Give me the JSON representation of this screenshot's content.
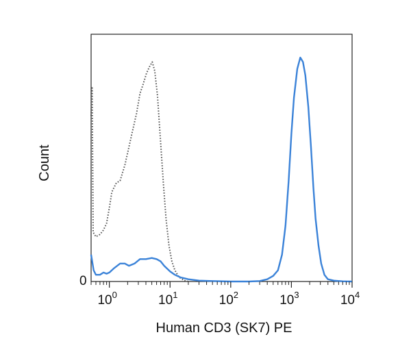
{
  "chart_data": {
    "type": "line",
    "title": "",
    "xlabel": "Human CD3 (SK7) PE",
    "ylabel": "Count",
    "x_scale": "log",
    "xlim": [
      0.5,
      10000
    ],
    "ylim": [
      0,
      100
    ],
    "y_tick_label": "0",
    "x_ticks": [
      {
        "value": 1,
        "base": "10",
        "exp": "0"
      },
      {
        "value": 10,
        "base": "10",
        "exp": "1"
      },
      {
        "value": 100,
        "base": "10",
        "exp": "2"
      },
      {
        "value": 1000,
        "base": "10",
        "exp": "3"
      },
      {
        "value": 10000,
        "base": "10",
        "exp": "4"
      }
    ],
    "grid": false,
    "legend": "none",
    "series": [
      {
        "style": "dotted",
        "color": "#555555",
        "points": [
          [
            0.5,
            74
          ],
          [
            0.52,
            87
          ],
          [
            0.54,
            22
          ],
          [
            0.6,
            20
          ],
          [
            0.7,
            21
          ],
          [
            0.8,
            23
          ],
          [
            0.9,
            26
          ],
          [
            1.0,
            33
          ],
          [
            1.1,
            40
          ],
          [
            1.3,
            44
          ],
          [
            1.5,
            45
          ],
          [
            1.8,
            52
          ],
          [
            2.1,
            60
          ],
          [
            2.4,
            67
          ],
          [
            2.8,
            75
          ],
          [
            3.2,
            84
          ],
          [
            3.6,
            88
          ],
          [
            4.1,
            93
          ],
          [
            4.6,
            96
          ],
          [
            5.1,
            98
          ],
          [
            5.6,
            94
          ],
          [
            6.2,
            83
          ],
          [
            7.0,
            62
          ],
          [
            7.8,
            43
          ],
          [
            8.6,
            28
          ],
          [
            9.6,
            16
          ],
          [
            10.7,
            9
          ],
          [
            12,
            5
          ],
          [
            14,
            2
          ],
          [
            17,
            0.5
          ],
          [
            20,
            0
          ]
        ]
      },
      {
        "style": "solid",
        "color": "#3a82d8",
        "points": [
          [
            0.5,
            12
          ],
          [
            0.55,
            5
          ],
          [
            0.6,
            3
          ],
          [
            0.7,
            3
          ],
          [
            0.8,
            4
          ],
          [
            0.9,
            3.5
          ],
          [
            1.0,
            4
          ],
          [
            1.2,
            6
          ],
          [
            1.5,
            8
          ],
          [
            1.8,
            8
          ],
          [
            2.1,
            7
          ],
          [
            2.6,
            8
          ],
          [
            3.2,
            10
          ],
          [
            4,
            10
          ],
          [
            5,
            10.5
          ],
          [
            6,
            10
          ],
          [
            7,
            9
          ],
          [
            8,
            7
          ],
          [
            10,
            4.5
          ],
          [
            12,
            3
          ],
          [
            15,
            1.8
          ],
          [
            20,
            1
          ],
          [
            30,
            0.4
          ],
          [
            50,
            0.2
          ],
          [
            100,
            0
          ],
          [
            200,
            0
          ],
          [
            300,
            0.2
          ],
          [
            400,
            1
          ],
          [
            500,
            2.5
          ],
          [
            600,
            5
          ],
          [
            700,
            12
          ],
          [
            800,
            25
          ],
          [
            900,
            45
          ],
          [
            1000,
            66
          ],
          [
            1100,
            82
          ],
          [
            1250,
            95
          ],
          [
            1400,
            100
          ],
          [
            1550,
            98
          ],
          [
            1700,
            92
          ],
          [
            1900,
            78
          ],
          [
            2100,
            60
          ],
          [
            2300,
            42
          ],
          [
            2500,
            28
          ],
          [
            2800,
            16
          ],
          [
            3100,
            8
          ],
          [
            3500,
            3
          ],
          [
            4000,
            1
          ],
          [
            5000,
            0.4
          ],
          [
            7000,
            0.1
          ],
          [
            10000,
            0
          ]
        ]
      }
    ]
  }
}
